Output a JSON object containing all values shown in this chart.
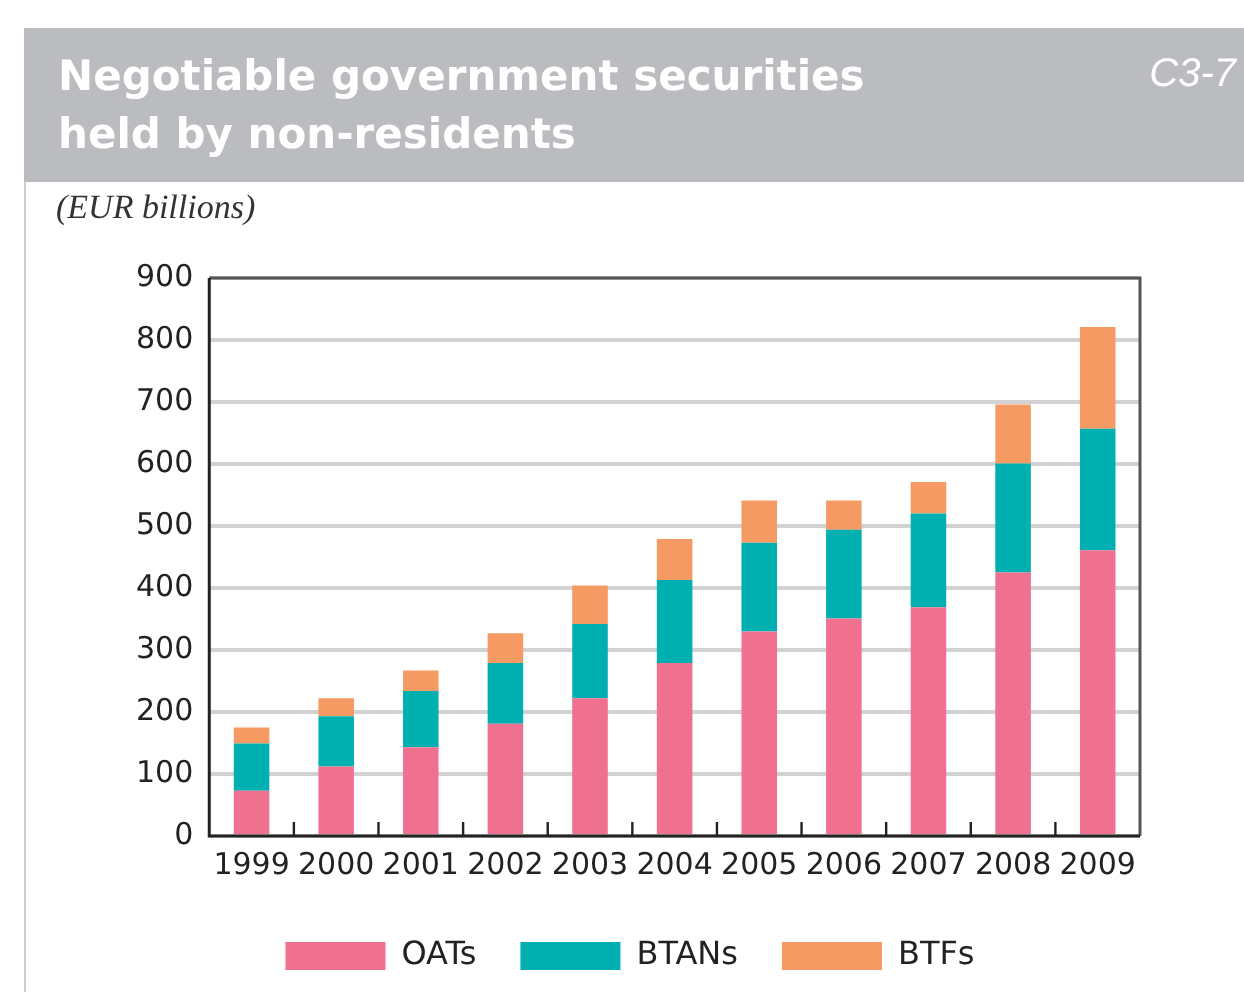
{
  "chart_data": {
    "type": "bar",
    "title": "Negotiable government securities held by non-residents",
    "ylabel": "(EUR billions)",
    "annotations": [
      "C3-7"
    ],
    "categories": [
      "1999",
      "2000",
      "2001",
      "2002",
      "2003",
      "2004",
      "2005",
      "2006",
      "2007",
      "2008",
      "2009"
    ],
    "stacked": true,
    "series": [
      {
        "name": "OATs",
        "color": "#f07090",
        "values": [
          73,
          112,
          143,
          181,
          222,
          279,
          330,
          351,
          369,
          425,
          461
        ]
      },
      {
        "name": "BTANs",
        "color": "#00b0b0",
        "values": [
          76,
          81,
          91,
          98,
          120,
          134,
          143,
          143,
          151,
          176,
          196
        ]
      },
      {
        "name": "BTFs",
        "color": "#f59a62",
        "values": [
          26,
          29,
          33,
          48,
          62,
          66,
          68,
          47,
          51,
          95,
          164
        ]
      }
    ],
    "ylim": [
      0,
      900
    ],
    "yticks": [
      0,
      100,
      200,
      300,
      400,
      500,
      600,
      700,
      800,
      900
    ],
    "grid": "y",
    "legend": "bottom"
  }
}
